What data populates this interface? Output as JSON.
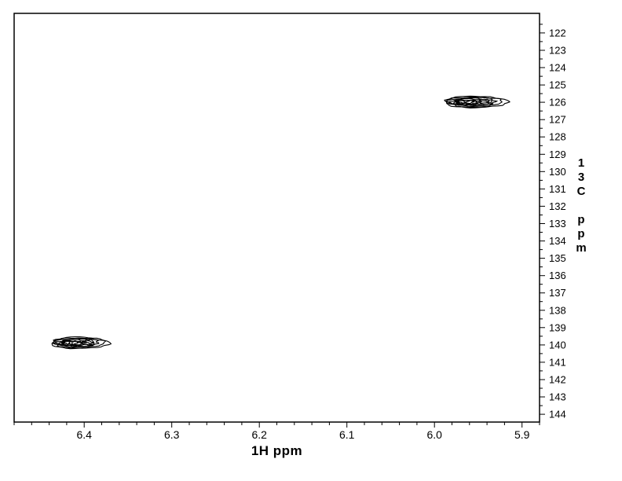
{
  "page": {
    "background_color": "#ffffff",
    "foreground_color": "#000000"
  },
  "chart_data": {
    "type": "contour",
    "subtype": "2D-NMR-correlation-spectrum",
    "xlabel": "1H ppm",
    "ylabel": "13C ppm",
    "x_axis": {
      "range": [
        6.48,
        5.88
      ],
      "direction": "reversed",
      "major_tick_labels": [
        "6.4",
        "6.3",
        "6.2",
        "6.1",
        "6.0",
        "5.9"
      ],
      "minor_tick_step": 0.02
    },
    "y_axis": {
      "range": [
        120.87,
        144.45
      ],
      "direction": "increasing-downward",
      "side": "right",
      "major_tick_labels": [
        122,
        123,
        124,
        125,
        126,
        127,
        128,
        129,
        130,
        131,
        132,
        133,
        134,
        135,
        136,
        137,
        138,
        139,
        140,
        141,
        142,
        143,
        144
      ],
      "minor_tick_step": 0.5
    },
    "grid": false,
    "legend": false,
    "peaks": [
      {
        "h_ppm": 5.953,
        "c_ppm": 125.98,
        "h_halfwidth_ppm": 0.036,
        "c_halfwidth_ppm": 0.33,
        "contour_levels": 7
      },
      {
        "h_ppm": 6.405,
        "c_ppm": 139.88,
        "h_halfwidth_ppm": 0.033,
        "c_halfwidth_ppm": 0.33,
        "contour_levels": 7
      }
    ],
    "contour_color": "#000000"
  }
}
